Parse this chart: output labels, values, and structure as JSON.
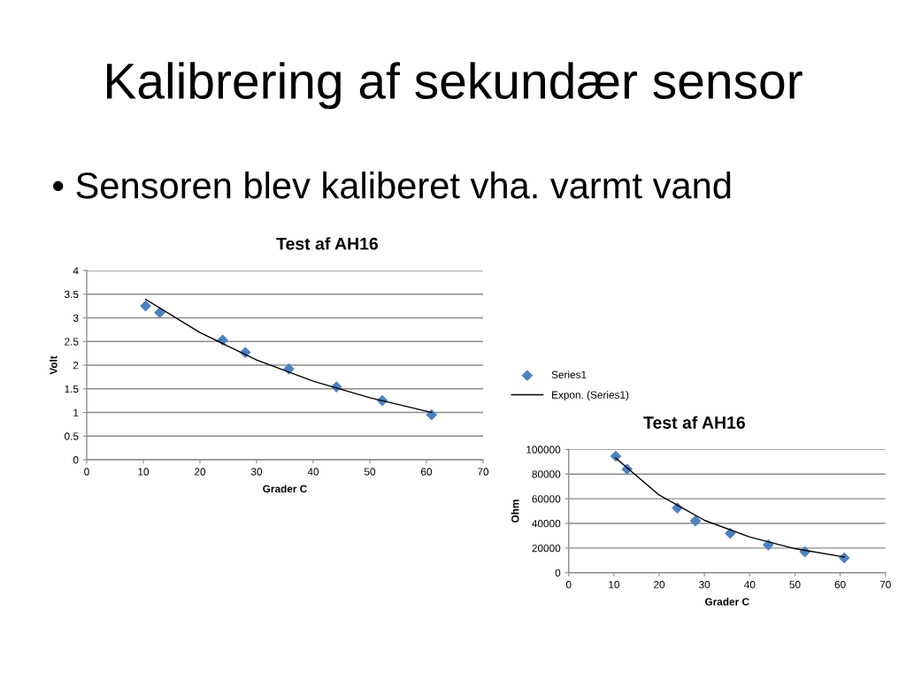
{
  "chart_data": [
    {
      "type": "scatter",
      "title": "Test af AH16",
      "xlabel": "Grader C",
      "ylabel": "Volt",
      "annotations": [
        "Kalibrering af sekundær sensor",
        "• Sensoren blev kaliberet vha. varmt vand"
      ],
      "series": [
        {
          "color": "#4f81bd",
          "marker": "diamond",
          "x": [
            10.4,
            12.9,
            24.0,
            28.0,
            35.7,
            44.1,
            52.2,
            60.9
          ],
          "values": [
            3.25,
            3.11,
            2.53,
            2.27,
            1.92,
            1.54,
            1.25,
            0.95
          ]
        },
        {
          "type": "line",
          "color": "#000000",
          "marker": "none",
          "x": [
            10.4,
            20,
            30,
            40,
            50,
            60.9
          ],
          "values": [
            3.39,
            2.69,
            2.11,
            1.66,
            1.31,
            1.0
          ]
        }
      ],
      "xlim": [
        0,
        70
      ],
      "xticks": [
        0,
        10,
        20,
        30,
        40,
        50,
        60,
        70
      ],
      "ylim": [
        0,
        4
      ],
      "yticks": [
        0,
        0.5,
        1,
        1.5,
        2,
        2.5,
        3,
        3.5,
        4
      ],
      "grid": "y",
      "line_style": "solid"
    },
    {
      "type": "scatter",
      "title": "Test af AH16",
      "xlabel": "Grader C",
      "ylabel": "Ohm",
      "series": [
        {
          "name": "Series1",
          "color": "#4f81bd",
          "marker": "diamond",
          "x": [
            10.4,
            12.9,
            24.0,
            28.0,
            35.7,
            44.1,
            52.2,
            60.9
          ],
          "values": [
            94500,
            84000,
            52500,
            42000,
            32000,
            22500,
            17000,
            12000
          ]
        },
        {
          "type": "line",
          "name": "Expon. (Series1)",
          "color": "#000000",
          "marker": "none",
          "x": [
            10.4,
            20,
            30,
            40,
            50,
            60.9
          ],
          "values": [
            93000,
            63000,
            42500,
            29000,
            19500,
            12700
          ]
        }
      ],
      "xlim": [
        0,
        70
      ],
      "xticks": [
        0,
        10,
        20,
        30,
        40,
        50,
        60,
        70
      ],
      "ylim": [
        0,
        100000
      ],
      "yticks": [
        0,
        20000,
        40000,
        60000,
        80000,
        100000
      ],
      "grid": "y",
      "line_style": "solid",
      "legend": "top left"
    }
  ]
}
